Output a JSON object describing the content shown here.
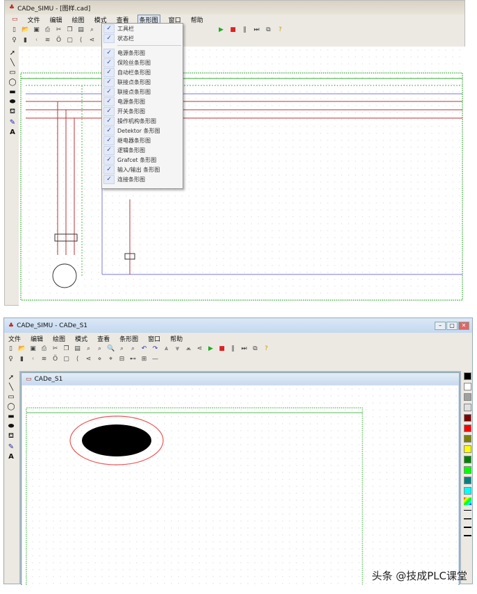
{
  "top_window": {
    "title": "CADe_SIMU - [图样.cad]",
    "menu": [
      "文件",
      "编辑",
      "绘图",
      "模式",
      "查看",
      "条形图",
      "窗口",
      "帮助"
    ],
    "active_menu": "条形图",
    "dropdown": {
      "group1": [
        "工具栏",
        "状态栏"
      ],
      "group2": [
        "电源条形图",
        "保险丝条形图",
        "自动栏条形图",
        "联接点条形图",
        "联接点条形图",
        "电源条形图",
        "开关条形图",
        "操作机构条形图",
        "Detektor 条形图",
        "继电器条形图",
        "逻辑条形图",
        "Grafcet 条形图",
        "输入/输出 条形图",
        "连接条形图"
      ],
      "all_checked": true
    }
  },
  "bottom_window": {
    "title": "CADe_SIMU - CADe_S1",
    "menu": [
      "文件",
      "编辑",
      "绘图",
      "模式",
      "查看",
      "条形图",
      "窗口",
      "帮助"
    ],
    "child_title": "CADe_S1",
    "palette_colors": [
      "#000000",
      "#ffffff",
      "#a0a0a0",
      "#e0e0e0",
      "#800000",
      "#ff0000",
      "#808000",
      "#ffff00",
      "#008000",
      "#00ff00",
      "#008080",
      "#00ffff"
    ]
  },
  "watermark": "头条 @技成PLC课堂"
}
